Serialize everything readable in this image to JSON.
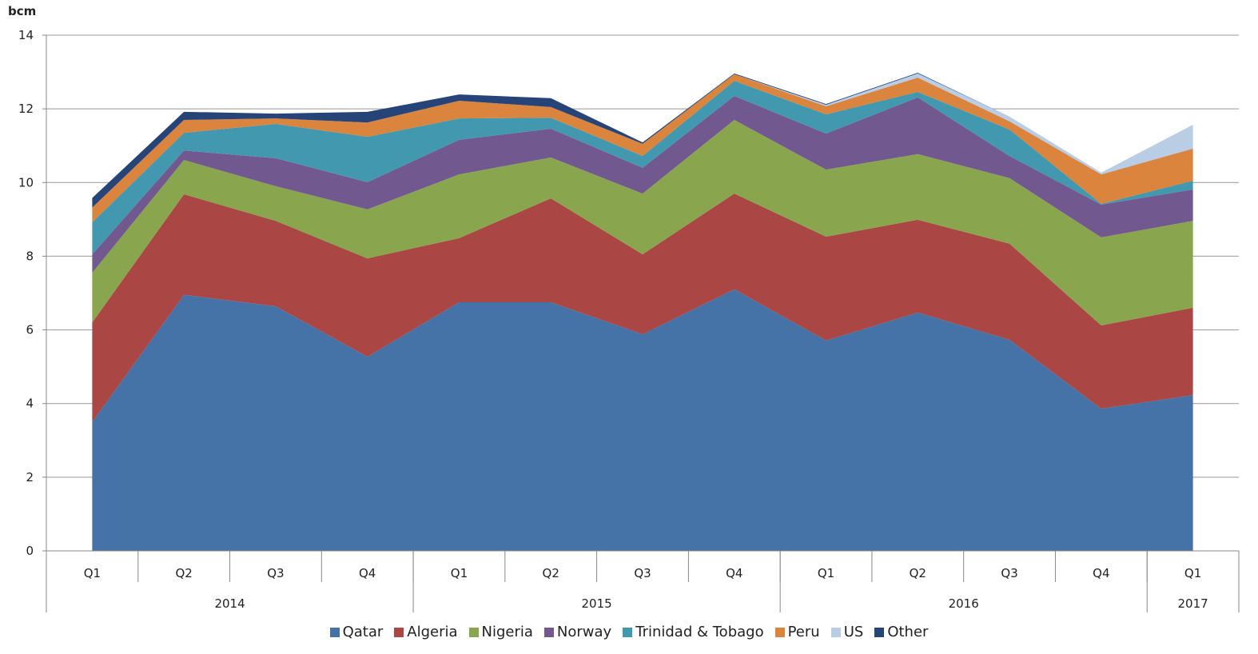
{
  "chart_data": {
    "type": "area",
    "stacked": true,
    "unit_label": "bcm",
    "ylim": [
      0,
      14
    ],
    "yticks": [
      0,
      2,
      4,
      6,
      8,
      10,
      12,
      14
    ],
    "grid": true,
    "legend_position": "bottom",
    "categories": [
      "Q1",
      "Q2",
      "Q3",
      "Q4",
      "Q1",
      "Q2",
      "Q3",
      "Q4",
      "Q1",
      "Q2",
      "Q3",
      "Q4",
      "Q1"
    ],
    "years": [
      {
        "label": "2014",
        "count": 4
      },
      {
        "label": "2015",
        "count": 4
      },
      {
        "label": "2016",
        "count": 4
      },
      {
        "label": "2017",
        "count": 1
      }
    ],
    "series": [
      {
        "name": "Qatar",
        "color": "#4572A7",
        "values": [
          3.5,
          6.95,
          6.64,
          5.27,
          6.75,
          6.75,
          5.88,
          7.1,
          5.71,
          6.47,
          5.73,
          3.86,
          4.23
        ]
      },
      {
        "name": "Algeria",
        "color": "#AA4643",
        "values": [
          2.7,
          2.73,
          2.32,
          2.67,
          1.74,
          2.82,
          2.17,
          2.6,
          2.82,
          2.52,
          2.61,
          2.26,
          2.37
        ]
      },
      {
        "name": "Nigeria",
        "color": "#89A54E",
        "values": [
          1.35,
          0.93,
          0.94,
          1.33,
          1.73,
          1.11,
          1.65,
          2.0,
          1.82,
          1.78,
          1.78,
          2.39,
          2.36
        ]
      },
      {
        "name": "Norway",
        "color": "#71588F",
        "values": [
          0.5,
          0.26,
          0.76,
          0.74,
          0.94,
          0.78,
          0.7,
          0.65,
          0.98,
          1.54,
          0.6,
          0.89,
          0.85
        ]
      },
      {
        "name": "Trinidad & Tobago",
        "color": "#4198AF",
        "values": [
          0.87,
          0.48,
          0.93,
          1.23,
          0.58,
          0.3,
          0.32,
          0.41,
          0.52,
          0.15,
          0.72,
          0.02,
          0.24
        ]
      },
      {
        "name": "Peru",
        "color": "#DB843D",
        "values": [
          0.4,
          0.35,
          0.15,
          0.39,
          0.48,
          0.29,
          0.33,
          0.18,
          0.22,
          0.39,
          0.22,
          0.8,
          0.87
        ]
      },
      {
        "name": "US",
        "color": "#B9CDE5",
        "values": [
          0,
          0,
          0,
          0,
          0,
          0,
          0,
          0,
          0.04,
          0.11,
          0.13,
          0.05,
          0.65
        ]
      },
      {
        "name": "Other",
        "color": "#264478",
        "values": [
          0.26,
          0.22,
          0.13,
          0.29,
          0.17,
          0.24,
          0.04,
          0.02,
          0.02,
          0.02,
          0,
          0,
          0
        ]
      }
    ]
  }
}
